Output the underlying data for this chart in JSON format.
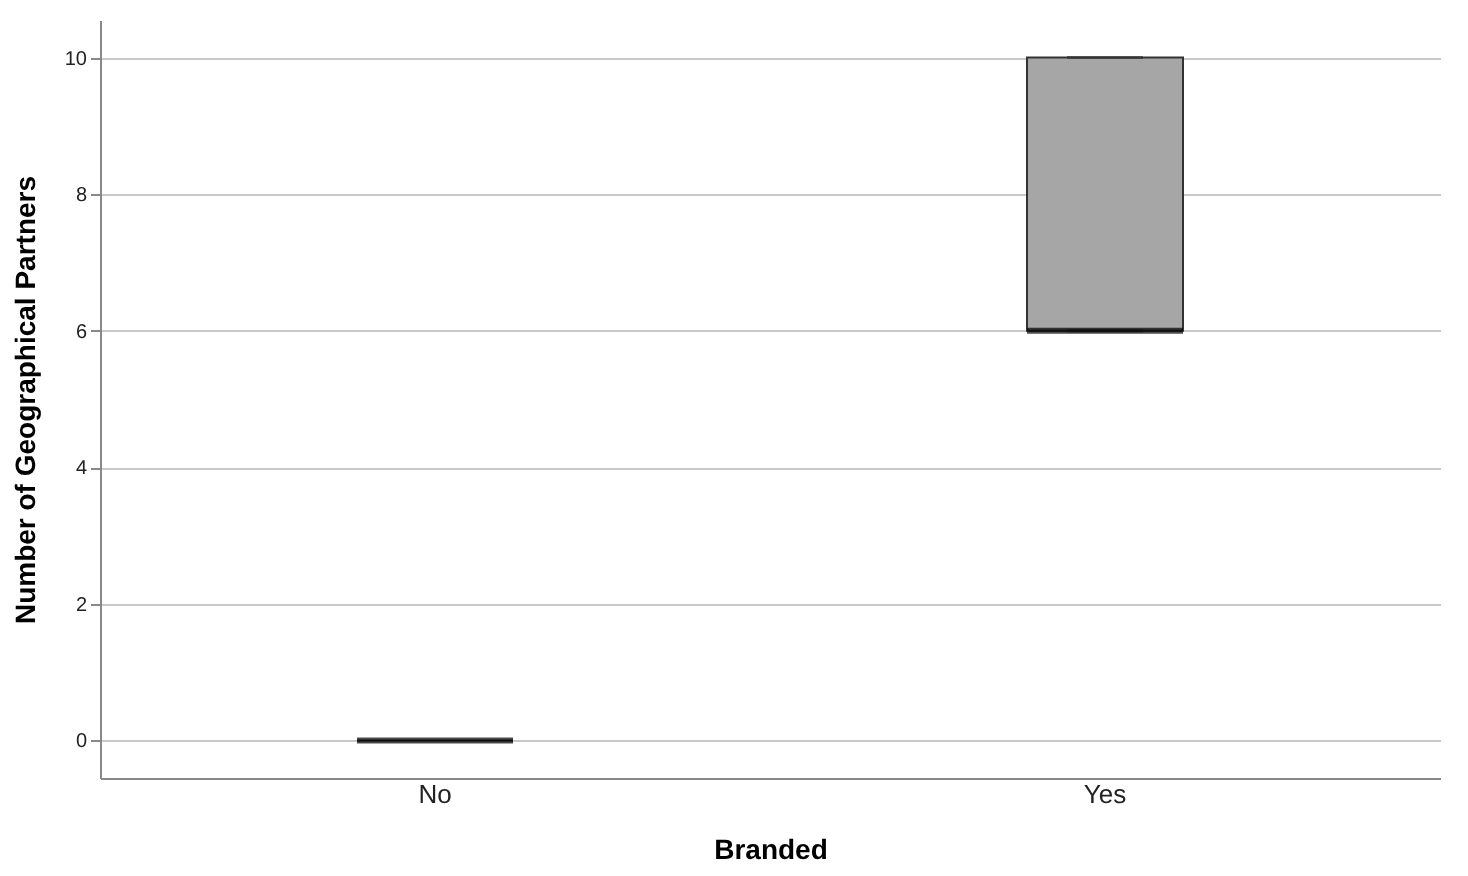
{
  "chart_data": {
    "type": "box",
    "xlabel": "Branded",
    "ylabel": "Number of Geographical Partners",
    "categories": [
      "No",
      "Yes"
    ],
    "boxes": [
      {
        "low": 0,
        "q1": 0,
        "median": 0,
        "q3": 0,
        "high": 0
      },
      {
        "low": 6,
        "q1": 6,
        "median": 6,
        "q3": 10,
        "high": 10
      }
    ],
    "colors": [
      "#000000",
      "#a6a6a6"
    ],
    "ylim": [
      -0.55,
      10.55
    ],
    "yticks": [
      0,
      2,
      4,
      6,
      8,
      10
    ],
    "grid": "y"
  }
}
